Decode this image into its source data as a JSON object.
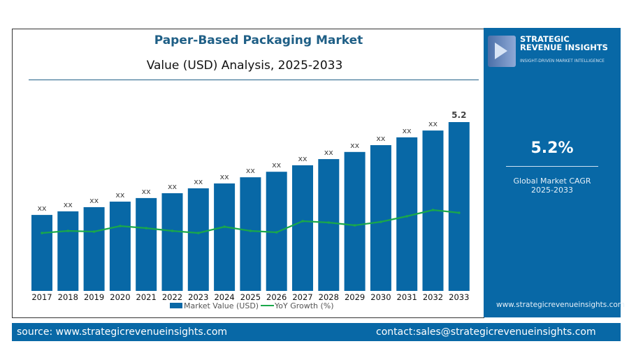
{
  "header": {
    "title": "Paper-Based Packaging Market",
    "subtitle": "Value (USD) Analysis, 2025-2033"
  },
  "panel": {
    "logo_line1": "STRATEGIC",
    "logo_line2": "REVENUE INSIGHTS",
    "logo_tagline": "INSIGHT-DRIVEN MARKET INTELLIGENCE",
    "cagr": "5.2%",
    "cagr_label1": "Global Market CAGR",
    "cagr_label2": "2025-2033",
    "url": "www.strategicrevenueinsights.com"
  },
  "footer": {
    "source": "source: www.strategicrevenueinsights.com",
    "contact": "contact:sales@strategicrevenueinsights.com"
  },
  "colors": {
    "bar": "#0868a6",
    "line": "#1aa84a",
    "title": "#1f5f86",
    "panel": "#0868a6"
  },
  "chart_data": {
    "type": "bar",
    "categories": [
      "2017",
      "2018",
      "2019",
      "2020",
      "2021",
      "2022",
      "2023",
      "2024",
      "2025",
      "2026",
      "2027",
      "2028",
      "2029",
      "2030",
      "2031",
      "2032",
      "2033"
    ],
    "series": [
      {
        "name": "Market Value (USD)",
        "type": "bar",
        "values": [
          2.34,
          2.45,
          2.58,
          2.75,
          2.86,
          3.01,
          3.16,
          3.31,
          3.5,
          3.67,
          3.87,
          4.06,
          4.28,
          4.49,
          4.73,
          4.94,
          5.2
        ],
        "data_labels": [
          "xx",
          "xx",
          "xx",
          "xx",
          "xx",
          "xx",
          "xx",
          "xx",
          "xx",
          "xx",
          "xx",
          "xx",
          "xx",
          "xx",
          "xx",
          "xx",
          "5.2"
        ]
      },
      {
        "name": "YoY Growth (%)",
        "type": "line",
        "values": [
          4.15,
          4.3,
          4.25,
          4.65,
          4.5,
          4.3,
          4.15,
          4.6,
          4.3,
          4.2,
          5.0,
          4.9,
          4.7,
          4.95,
          5.35,
          5.8,
          5.6
        ]
      }
    ],
    "legend": "bottom",
    "grid": false
  }
}
